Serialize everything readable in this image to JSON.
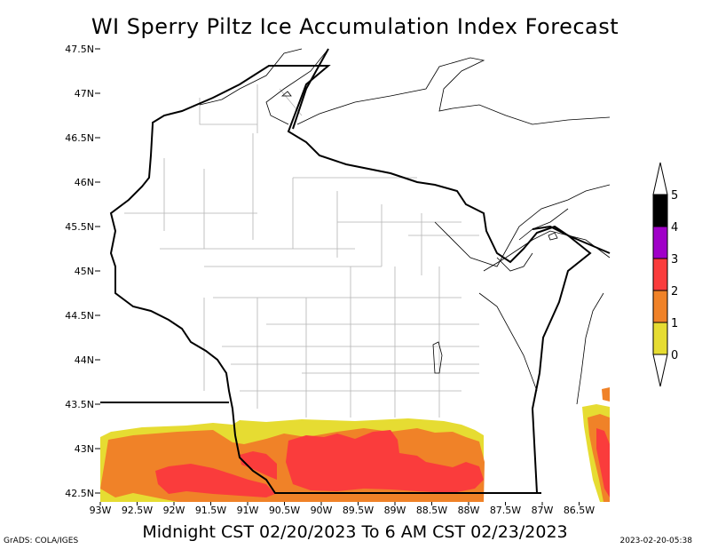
{
  "title": "WI Sperry Piltz Ice Accumulation Index Forecast",
  "subtitle": "Midnight CST 02/20/2023 To 6 AM CST 02/23/2023",
  "credit": "GrADS: COLA/IGES",
  "timestamp": "2023-02-20-05:38",
  "lat_labels": [
    "47.5N",
    "47N",
    "46.5N",
    "46N",
    "45.5N",
    "45N",
    "44.5N",
    "44N",
    "43.5N",
    "43N",
    "42.5N"
  ],
  "lon_labels": [
    "93W",
    "92.5W",
    "92W",
    "91.5W",
    "91W",
    "90.5W",
    "90W",
    "89.5W",
    "89W",
    "88.5W",
    "88W",
    "87.5W",
    "87W",
    "86.5W"
  ],
  "legend": {
    "levels": [
      "0",
      "1",
      "2",
      "3",
      "4",
      "5"
    ],
    "colors": [
      "#e6dc32",
      "#f08228",
      "#fa3c3c",
      "#a000c8",
      "#000000"
    ]
  },
  "fill_colors": {
    "level_0_1": "#e6dc32",
    "level_1_2": "#f08228",
    "level_2_3": "#fa3c3c"
  }
}
